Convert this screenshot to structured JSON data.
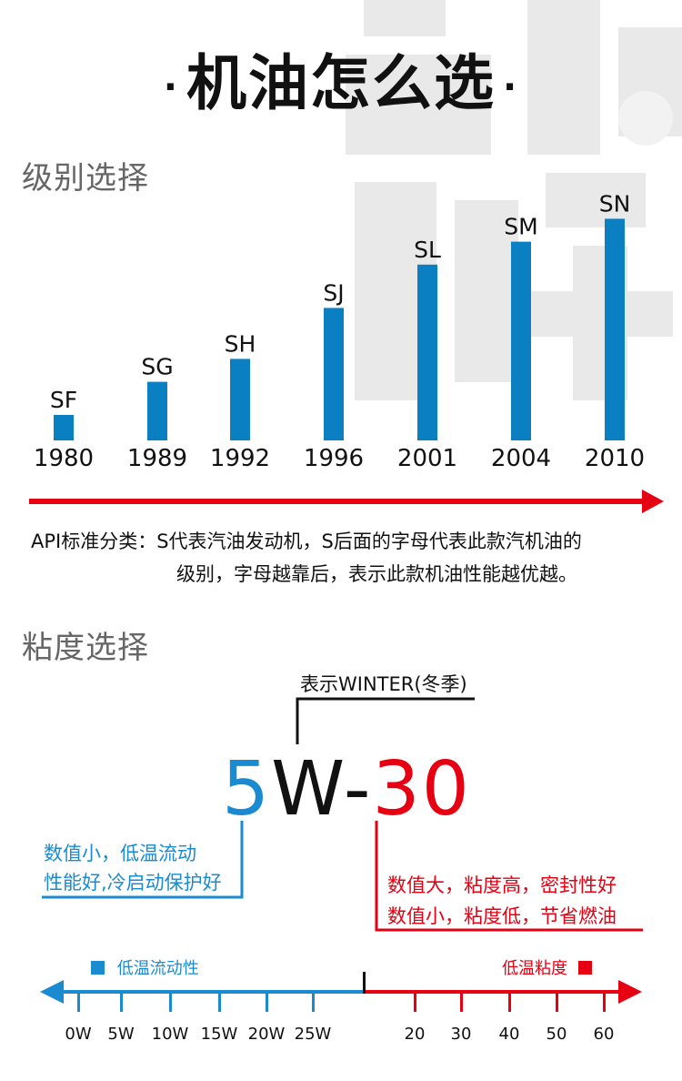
{
  "title": "机油怎么选",
  "title_dots": [
    "·",
    "·"
  ],
  "sections": {
    "grade": "级别选择",
    "viscosity": "粘度选择"
  },
  "chart_data": {
    "type": "bar",
    "categories": [
      "1980",
      "1989",
      "1992",
      "1996",
      "2001",
      "2004",
      "2010"
    ],
    "labels": [
      "SF",
      "SG",
      "SH",
      "SJ",
      "SL",
      "SM",
      "SN"
    ],
    "values": [
      1,
      2.3,
      3.2,
      5.2,
      6.9,
      7.8,
      8.7
    ],
    "ylim": [
      0,
      9
    ],
    "bar_color": "#0a7fc2",
    "arrow_color": "#e60012",
    "grid": false
  },
  "api_note": {
    "line1": "API标准分类：S代表汽油发动机，S后面的字母代表此款汽机油的",
    "line2": "级别，字母越靠后，表示此款机油性能越优越。"
  },
  "viscosity": {
    "winter_label": "表示WINTER(冬季)",
    "code_5": "5",
    "code_w": "W-",
    "code_30": "30",
    "left_line1": "数值小，低温流动",
    "left_line2": "性能好,冷启动保护好",
    "right_line1": "数值大，粘度高，密封性好",
    "right_line2": "数值小，粘度低，节省燃油",
    "legend_left": "低温流动性",
    "legend_right": "低温粘度",
    "scale_left": [
      "0W",
      "5W",
      "10W",
      "15W",
      "20W",
      "25W"
    ],
    "scale_right": [
      "20",
      "30",
      "40",
      "50",
      "60"
    ]
  },
  "colors": {
    "blue": "#1a8bd1",
    "red": "#e60012",
    "bar": "#0a7fc2"
  }
}
